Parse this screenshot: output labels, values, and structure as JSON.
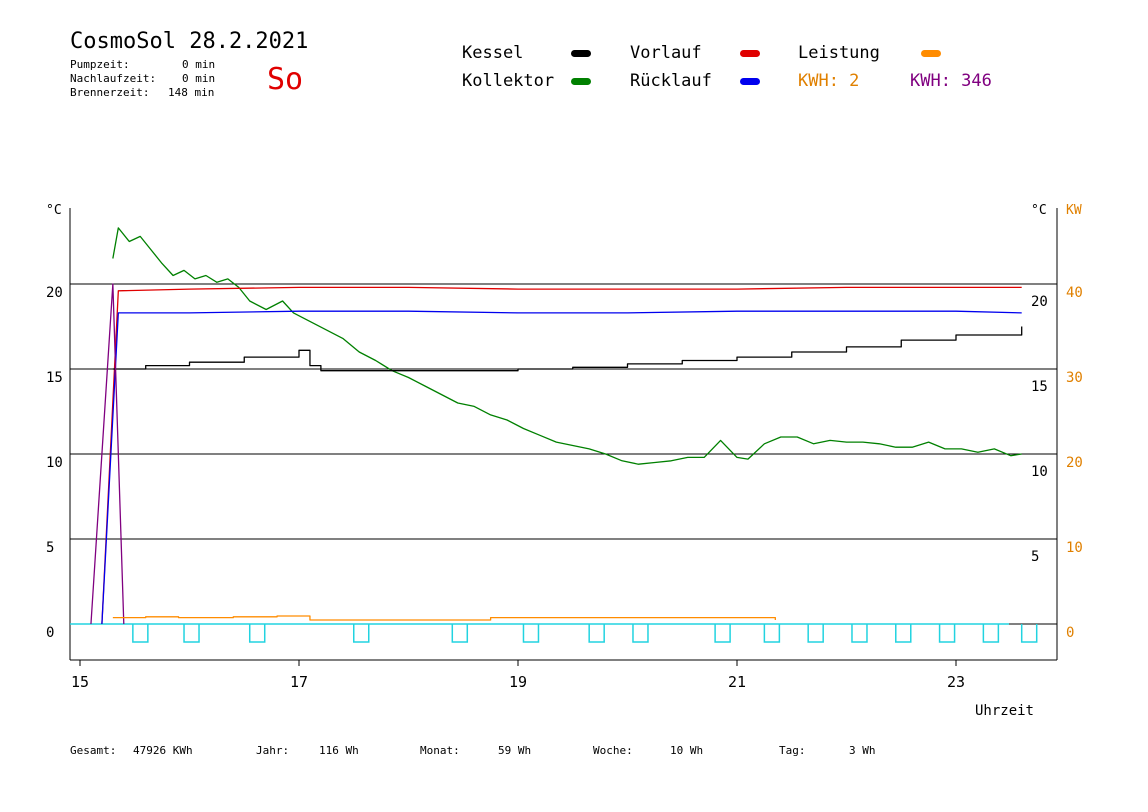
{
  "header": {
    "title": "CosmoSol 28.2.2021",
    "pumpzeit_label": "Pumpzeit:",
    "pumpzeit_value": "0 min",
    "nachlaufzeit_label": "Nachlaufzeit:",
    "nachlaufzeit_value": "0 min",
    "brennerzeit_label": "Brennerzeit:",
    "brennerzeit_value": "148 min",
    "day": "So"
  },
  "legend": [
    {
      "label": "Kessel",
      "color": "#000000"
    },
    {
      "label": "Kollektor",
      "color": "#008000"
    },
    {
      "label": "Vorlauf",
      "color": "#e00000"
    },
    {
      "label": "Rücklauf",
      "color": "#0000ee"
    },
    {
      "label": "Leistung",
      "color": "#ff8c00"
    }
  ],
  "kwh": [
    {
      "text": "KWH: 2",
      "color": "#e08000"
    },
    {
      "text": "KWH: 346",
      "color": "#800080"
    }
  ],
  "footer": {
    "gesamt_label": "Gesamt:",
    "gesamt_value": "47926 KWh",
    "jahr_label": "Jahr:",
    "jahr_value": "116 Wh",
    "monat_label": "Monat:",
    "monat_value": "59 Wh",
    "woche_label": "Woche:",
    "woche_value": "10 Wh",
    "tag_label": "Tag:",
    "tag_value": "3 Wh"
  },
  "chart_data": {
    "type": "line",
    "xlabel": "Uhrzeit",
    "xlim": [
      15,
      24
    ],
    "x_ticks": [
      15,
      17,
      19,
      21,
      23
    ],
    "y_left_unit": "°C",
    "y_left_ticks": [
      0,
      5,
      10,
      15,
      20
    ],
    "y_right_unit": "°C",
    "y_right_ticks": [
      5,
      10,
      15,
      20
    ],
    "y_kw_unit": "KW",
    "y_kw_ticks": [
      0,
      10,
      20,
      30,
      40
    ],
    "ylim": [
      -2,
      25
    ],
    "grid_y": [
      0,
      5,
      10,
      15,
      20
    ],
    "series": [
      {
        "name": "Kollektor",
        "color": "#008000",
        "x": [
          15.3,
          15.35,
          15.45,
          15.55,
          15.65,
          15.75,
          15.85,
          15.95,
          16.05,
          16.15,
          16.25,
          16.35,
          16.45,
          16.55,
          16.7,
          16.85,
          16.95,
          17.1,
          17.25,
          17.4,
          17.55,
          17.7,
          17.85,
          18.0,
          18.15,
          18.3,
          18.45,
          18.6,
          18.75,
          18.9,
          19.05,
          19.2,
          19.35,
          19.5,
          19.65,
          19.8,
          19.95,
          20.1,
          20.25,
          20.4,
          20.55,
          20.7,
          20.85,
          21.0,
          21.1,
          21.25,
          21.4,
          21.55,
          21.7,
          21.85,
          22.0,
          22.15,
          22.3,
          22.45,
          22.6,
          22.75,
          22.9,
          23.05,
          23.2,
          23.35,
          23.5,
          23.6
        ],
        "y": [
          21.5,
          23.3,
          22.5,
          22.8,
          22.0,
          21.2,
          20.5,
          20.8,
          20.3,
          20.5,
          20.1,
          20.3,
          19.8,
          19.0,
          18.5,
          19.0,
          18.3,
          17.8,
          17.3,
          16.8,
          16.0,
          15.5,
          14.9,
          14.5,
          14.0,
          13.5,
          13.0,
          12.8,
          12.3,
          12.0,
          11.5,
          11.1,
          10.7,
          10.5,
          10.3,
          10.0,
          9.6,
          9.4,
          9.5,
          9.6,
          9.8,
          9.8,
          10.8,
          9.8,
          9.7,
          10.6,
          11.0,
          11.0,
          10.6,
          10.8,
          10.7,
          10.7,
          10.6,
          10.4,
          10.4,
          10.7,
          10.3,
          10.3,
          10.1,
          10.3,
          9.9,
          10.0
        ]
      },
      {
        "name": "Vorlauf",
        "color": "#e00000",
        "x": [
          15.2,
          15.35,
          16.0,
          17.0,
          18.0,
          19.0,
          20.0,
          21.0,
          22.0,
          23.0,
          23.6
        ],
        "y": [
          0,
          19.6,
          19.7,
          19.8,
          19.8,
          19.7,
          19.7,
          19.7,
          19.8,
          19.8,
          19.8
        ]
      },
      {
        "name": "Rücklauf",
        "color": "#0000ee",
        "x": [
          15.2,
          15.35,
          16.0,
          17.0,
          18.0,
          19.0,
          20.0,
          21.0,
          22.0,
          23.0,
          23.6
        ],
        "y": [
          0,
          18.3,
          18.3,
          18.4,
          18.4,
          18.3,
          18.3,
          18.4,
          18.4,
          18.4,
          18.3
        ]
      },
      {
        "name": "Kessel",
        "color": "#000000",
        "x": [
          15.3,
          15.6,
          16.0,
          16.5,
          17.0,
          17.1,
          17.2,
          17.4,
          17.8,
          18.5,
          19.0,
          19.5,
          20.0,
          20.5,
          21.0,
          21.5,
          22.0,
          22.5,
          23.0,
          23.6
        ],
        "y": [
          15.0,
          15.2,
          15.4,
          15.7,
          16.1,
          15.2,
          14.9,
          14.9,
          14.9,
          14.9,
          15.0,
          15.1,
          15.3,
          15.5,
          15.7,
          16.0,
          16.3,
          16.7,
          17.0,
          17.5
        ]
      },
      {
        "name": "KWH-Leistung",
        "color": "#800080",
        "x": [
          15.1,
          15.3,
          15.4
        ],
        "y": [
          0,
          20,
          0
        ]
      },
      {
        "name": "Leistung",
        "color": "#ff8c00",
        "x": [
          15.3,
          15.6,
          15.9,
          16.4,
          16.8,
          17.05,
          17.1,
          18.6,
          18.75,
          19.5,
          20.0,
          20.5,
          21.0,
          21.3,
          21.35
        ],
        "y": [
          0.3,
          0.4,
          0.3,
          0.4,
          0.5,
          0.5,
          0.0,
          0.0,
          0.3,
          0.3,
          0.3,
          0.3,
          0.3,
          0.3,
          0.0
        ]
      }
    ],
    "pump_pulses": [
      15.3,
      15.95,
      16.55,
      17.5,
      18.4,
      19.05,
      19.65,
      20.05,
      20.8,
      21.25,
      21.65,
      22.05,
      22.45,
      22.85,
      23.25,
      23.6
    ]
  }
}
